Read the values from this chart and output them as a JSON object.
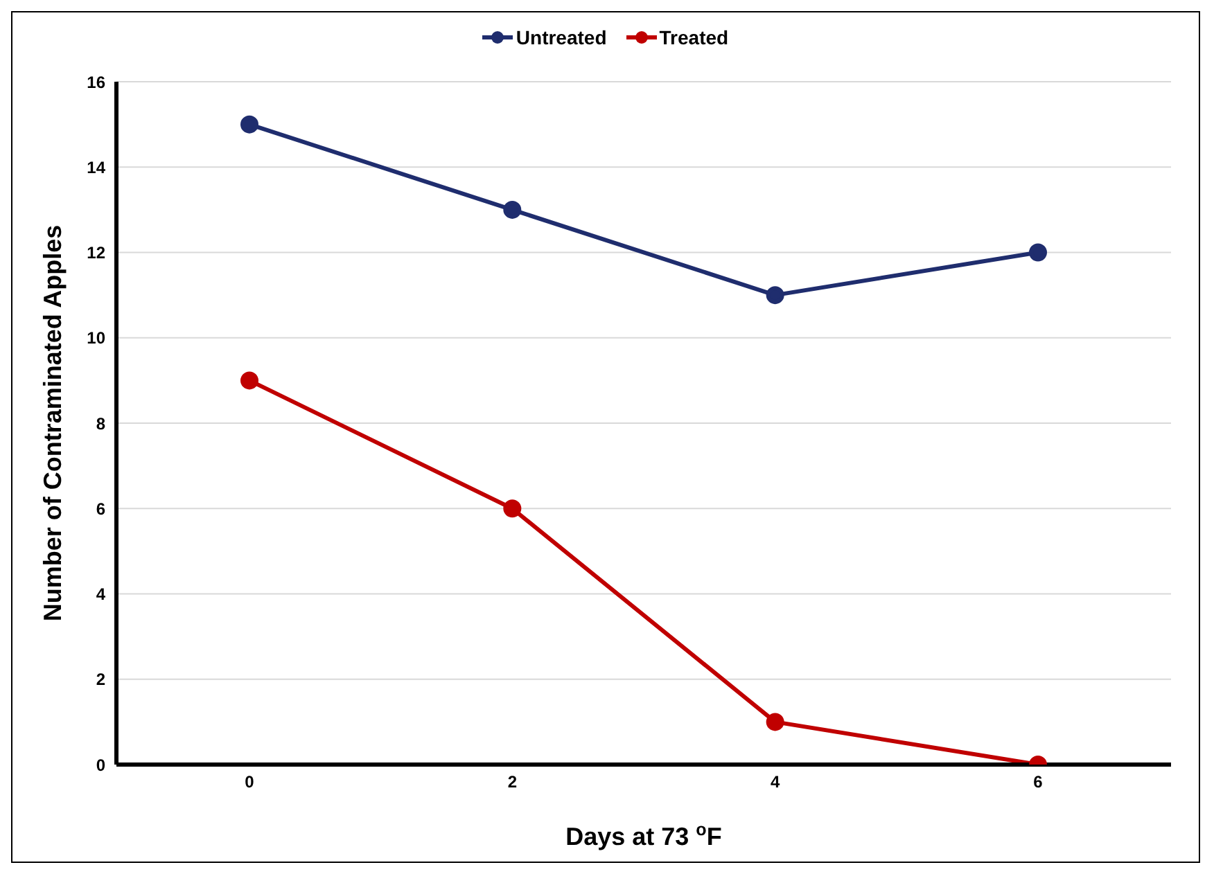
{
  "chart_data": {
    "type": "line",
    "xlabel": "Days at 73 $^{o}$F",
    "ylabel": "Number of Contraminated Apples",
    "categories": [
      "0",
      "2",
      "4",
      "6"
    ],
    "series": [
      {
        "name": "Untreated",
        "color": "#1f2d6e",
        "values": [
          15,
          13,
          11,
          12
        ]
      },
      {
        "name": "Treated",
        "color": "#c00000",
        "values": [
          9,
          6,
          1,
          0
        ]
      }
    ],
    "ylim": [
      0,
      16
    ],
    "yticks": [
      0,
      2,
      4,
      6,
      8,
      10,
      12,
      14,
      16
    ],
    "grid": "y",
    "legend": "top",
    "marker": "circle",
    "line_style": "solid"
  }
}
